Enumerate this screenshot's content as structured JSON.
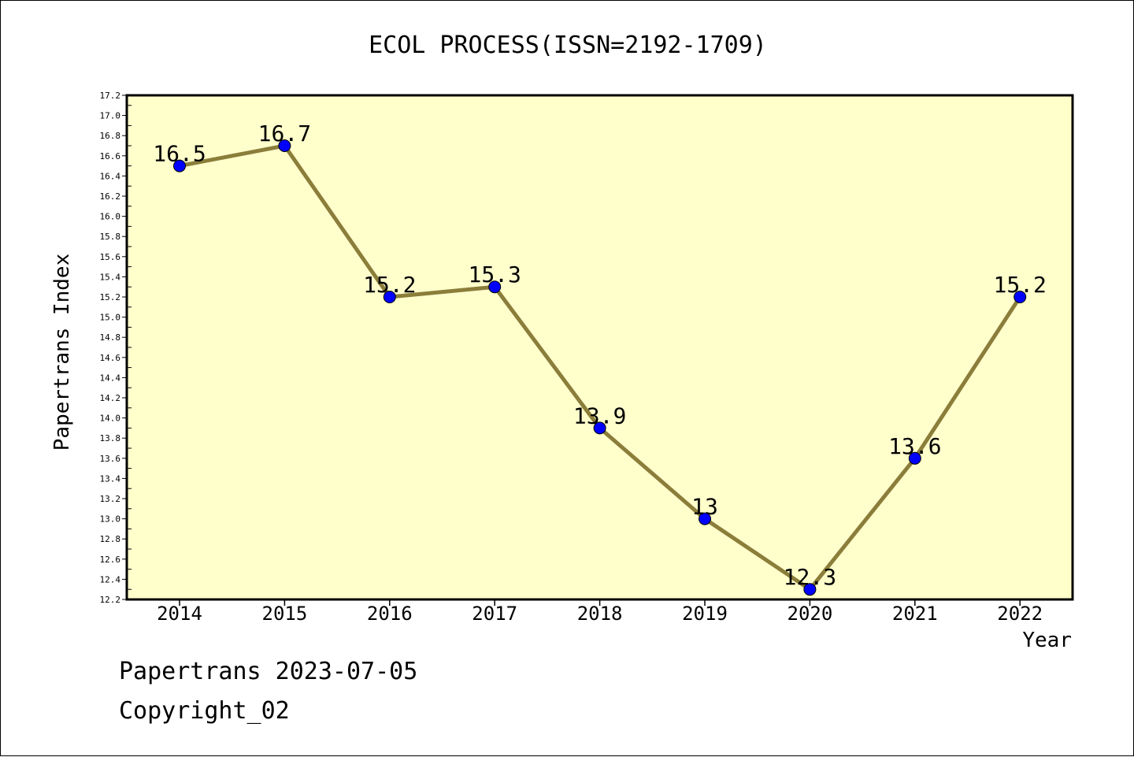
{
  "chart_data": {
    "type": "line",
    "title": "ECOL PROCESS(ISSN=2192-1709)",
    "xlabel": "Year",
    "ylabel": "Papertrans Index",
    "categories": [
      "2014",
      "2015",
      "2016",
      "2017",
      "2018",
      "2019",
      "2020",
      "2021",
      "2022"
    ],
    "series": [
      {
        "values": [
          16.5,
          16.7,
          15.2,
          15.3,
          13.9,
          13.0,
          12.3,
          13.6,
          15.2
        ]
      }
    ],
    "data_labels": [
      "16.5",
      "16.7",
      "15.2",
      "15.3",
      "13.9",
      "13",
      "12.3",
      "13.6",
      "15.2"
    ],
    "ylim": [
      12.2,
      17.2
    ],
    "ytick_step": 0.2,
    "grid": false,
    "colors": {
      "plot_background": "#ffffcc",
      "line": "#8b7d3a",
      "marker": "#0000ff"
    }
  },
  "footer": {
    "line1": "Papertrans 2023-07-05",
    "line2": "Copyright_02"
  }
}
